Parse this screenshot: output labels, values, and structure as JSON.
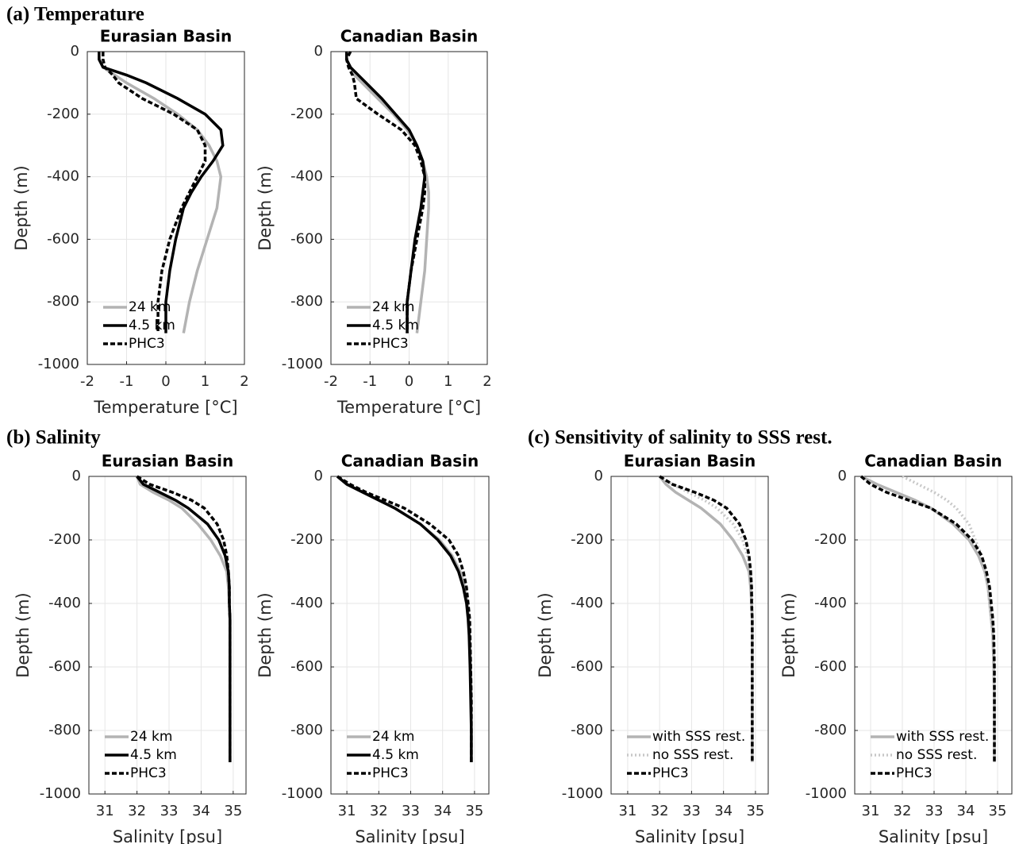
{
  "section_titles": [
    "(a) Temperature",
    "(b) Salinity",
    "(c) Sensitivity of salinity to SSS rest."
  ],
  "chart_data": [
    {
      "type": "line",
      "title": "Eurasian Basin",
      "xlabel": "Temperature [°C]",
      "ylabel": "Depth (m)",
      "y": [
        0,
        -25,
        -50,
        -75,
        -100,
        -150,
        -200,
        -250,
        -300,
        -350,
        -400,
        -450,
        -500,
        -600,
        -700,
        -800,
        -900
      ],
      "xlim": [
        -2,
        2
      ],
      "xticks": [
        -2,
        -1,
        0,
        1,
        2
      ],
      "ylim": [
        -1000,
        0
      ],
      "yticks": [
        0,
        -200,
        -400,
        -600,
        -800,
        -1000
      ],
      "grid": true,
      "legend": "lower left",
      "series": [
        {
          "name": "24 km",
          "color": "#b3b3b3",
          "style": "solid",
          "values": [
            -1.7,
            -1.7,
            -1.6,
            -1.3,
            -1.0,
            -0.3,
            0.3,
            0.8,
            1.1,
            1.3,
            1.4,
            1.35,
            1.3,
            1.05,
            0.8,
            0.6,
            0.45
          ]
        },
        {
          "name": "4.5 km",
          "color": "#000000",
          "style": "solid",
          "values": [
            -1.7,
            -1.7,
            -1.6,
            -1.0,
            -0.5,
            0.3,
            1.0,
            1.4,
            1.45,
            1.2,
            0.9,
            0.65,
            0.45,
            0.25,
            0.1,
            0.0,
            0.0
          ]
        },
        {
          "name": "PHC3",
          "color": "#000000",
          "style": "dashed",
          "values": [
            -1.6,
            -1.6,
            -1.55,
            -1.35,
            -1.2,
            -0.6,
            0.2,
            0.8,
            1.0,
            1.0,
            0.8,
            0.6,
            0.4,
            0.1,
            -0.1,
            -0.2,
            -0.2
          ]
        }
      ]
    },
    {
      "type": "line",
      "title": "Canadian Basin",
      "xlabel": "Temperature [°C]",
      "ylabel": "Depth (m)",
      "y": [
        0,
        -25,
        -50,
        -75,
        -100,
        -150,
        -200,
        -250,
        -300,
        -350,
        -400,
        -450,
        -500,
        -600,
        -700,
        -800,
        -900
      ],
      "xlim": [
        -2,
        2
      ],
      "xticks": [
        -2,
        -1,
        0,
        1,
        2
      ],
      "ylim": [
        -1000,
        0
      ],
      "yticks": [
        0,
        -200,
        -400,
        -600,
        -800,
        -1000
      ],
      "grid": true,
      "legend": "lower left",
      "series": [
        {
          "name": "24 km",
          "color": "#b3b3b3",
          "style": "solid",
          "values": [
            -1.6,
            -1.6,
            -1.5,
            -1.4,
            -1.2,
            -0.8,
            -0.4,
            -0.05,
            0.2,
            0.35,
            0.45,
            0.5,
            0.5,
            0.45,
            0.4,
            0.3,
            0.2
          ]
        },
        {
          "name": "4.5 km",
          "color": "#000000",
          "style": "solid",
          "values": [
            -1.6,
            -1.6,
            -1.5,
            -1.3,
            -1.1,
            -0.7,
            -0.35,
            0.0,
            0.2,
            0.35,
            0.4,
            0.35,
            0.3,
            0.15,
            0.05,
            -0.05,
            -0.05
          ]
        },
        {
          "name": "PHC3",
          "color": "#000000",
          "style": "dashed",
          "values": [
            -1.5,
            -1.6,
            -1.55,
            -1.45,
            -1.4,
            -1.35,
            -0.8,
            -0.2,
            0.15,
            0.3,
            0.4,
            0.4,
            0.35,
            0.2,
            0.05,
            -0.05,
            -0.05
          ]
        }
      ]
    },
    {
      "type": "line",
      "title": "Eurasian Basin",
      "xlabel": "Salinity [psu]",
      "ylabel": "Depth (m)",
      "y": [
        0,
        -25,
        -50,
        -75,
        -100,
        -150,
        -200,
        -250,
        -300,
        -350,
        -400,
        -450,
        -500,
        -600,
        -700,
        -800,
        -900
      ],
      "xlim": [
        30.5,
        35.4
      ],
      "xticks": [
        31,
        32,
        33,
        34,
        35
      ],
      "ylim": [
        -1000,
        0
      ],
      "yticks": [
        0,
        -200,
        -400,
        -600,
        -800,
        -1000
      ],
      "grid": true,
      "legend": "lower left",
      "series": [
        {
          "name": "24 km",
          "color": "#b3b3b3",
          "style": "solid",
          "values": [
            32.0,
            32.1,
            32.5,
            33.0,
            33.4,
            33.9,
            34.3,
            34.6,
            34.8,
            34.85,
            34.88,
            34.9,
            34.9,
            34.9,
            34.9,
            34.9,
            34.9
          ]
        },
        {
          "name": "4.5 km",
          "color": "#000000",
          "style": "solid",
          "values": [
            32.0,
            32.2,
            32.7,
            33.2,
            33.6,
            34.2,
            34.55,
            34.75,
            34.85,
            34.88,
            34.88,
            34.9,
            34.9,
            34.9,
            34.9,
            34.9,
            34.9
          ]
        },
        {
          "name": "PHC3",
          "color": "#000000",
          "style": "dashed",
          "values": [
            32.0,
            32.4,
            33.1,
            33.7,
            34.1,
            34.5,
            34.7,
            34.8,
            34.85,
            34.88,
            34.88,
            34.9,
            34.9,
            34.9,
            34.9,
            34.9,
            34.9
          ]
        }
      ]
    },
    {
      "type": "line",
      "title": "Canadian Basin",
      "xlabel": "Salinity [psu]",
      "ylabel": "Depth (m)",
      "y": [
        0,
        -25,
        -50,
        -75,
        -100,
        -150,
        -200,
        -250,
        -300,
        -350,
        -400,
        -450,
        -500,
        -600,
        -700,
        -800,
        -900
      ],
      "xlim": [
        30.5,
        35.45
      ],
      "xticks": [
        31,
        32,
        33,
        34,
        35
      ],
      "ylim": [
        -1000,
        0
      ],
      "yticks": [
        0,
        -200,
        -400,
        -600,
        -800,
        -1000
      ],
      "grid": true,
      "legend": "lower left",
      "series": [
        {
          "name": "24 km",
          "color": "#b3b3b3",
          "style": "solid",
          "values": [
            30.7,
            31.0,
            31.5,
            32.0,
            32.5,
            33.3,
            33.9,
            34.3,
            34.55,
            34.7,
            34.78,
            34.82,
            34.85,
            34.88,
            34.9,
            34.9,
            34.9
          ]
        },
        {
          "name": "4.5 km",
          "color": "#000000",
          "style": "solid",
          "values": [
            30.7,
            31.0,
            31.5,
            32.0,
            32.5,
            33.3,
            33.85,
            34.25,
            34.5,
            34.65,
            34.75,
            34.8,
            34.83,
            34.86,
            34.88,
            34.9,
            34.9
          ]
        },
        {
          "name": "PHC3",
          "color": "#000000",
          "style": "dashed",
          "values": [
            30.7,
            31.1,
            31.6,
            32.2,
            32.8,
            33.6,
            34.2,
            34.5,
            34.65,
            34.75,
            34.8,
            34.85,
            34.86,
            34.88,
            34.9,
            34.9,
            34.9
          ]
        }
      ]
    },
    {
      "type": "line",
      "title": "Eurasian Basin",
      "xlabel": "Salinity [psu]",
      "ylabel": "Depth (m)",
      "y": [
        0,
        -25,
        -50,
        -75,
        -100,
        -150,
        -200,
        -250,
        -300,
        -350,
        -400,
        -450,
        -500,
        -600,
        -700,
        -800,
        -900
      ],
      "xlim": [
        30.48,
        35.4
      ],
      "xticks": [
        31,
        32,
        33,
        34,
        35
      ],
      "ylim": [
        -1000,
        0
      ],
      "yticks": [
        0,
        -200,
        -400,
        -600,
        -800,
        -1000
      ],
      "grid": true,
      "legend": "lower left",
      "series": [
        {
          "name": "with SSS rest.",
          "color": "#b3b3b3",
          "style": "solid",
          "values": [
            32.0,
            32.2,
            32.5,
            32.9,
            33.3,
            33.9,
            34.3,
            34.6,
            34.8,
            34.85,
            34.88,
            34.9,
            34.9,
            34.9,
            34.9,
            34.9,
            34.9
          ]
        },
        {
          "name": "no SSS rest.",
          "color": "#c8c8c8",
          "style": "dotted",
          "values": [
            32.0,
            32.4,
            32.9,
            33.4,
            33.8,
            34.3,
            34.6,
            34.75,
            34.85,
            34.88,
            34.9,
            34.9,
            34.9,
            34.9,
            34.9,
            34.9,
            34.9
          ]
        },
        {
          "name": "PHC3",
          "color": "#000000",
          "style": "dashed",
          "values": [
            32.0,
            32.4,
            33.1,
            33.7,
            34.1,
            34.5,
            34.7,
            34.8,
            34.85,
            34.88,
            34.88,
            34.9,
            34.9,
            34.9,
            34.9,
            34.9,
            34.9
          ]
        }
      ]
    },
    {
      "type": "line",
      "title": "Canadian Basin",
      "xlabel": "Salinity [psu]",
      "ylabel": "Depth (m)",
      "y": [
        0,
        -25,
        -50,
        -75,
        -100,
        -150,
        -200,
        -250,
        -300,
        -350,
        -400,
        -450,
        -500,
        -600,
        -700,
        -800,
        -900
      ],
      "xlim": [
        30.5,
        35.45
      ],
      "xticks": [
        31,
        32,
        33,
        34,
        35
      ],
      "ylim": [
        -1000,
        0
      ],
      "yticks": [
        0,
        -200,
        -400,
        -600,
        -800,
        -1000
      ],
      "grid": true,
      "legend": "lower left",
      "series": [
        {
          "name": "with SSS rest.",
          "color": "#b3b3b3",
          "style": "solid",
          "values": [
            30.7,
            31.2,
            31.8,
            32.4,
            32.9,
            33.6,
            34.1,
            34.4,
            34.6,
            34.7,
            34.75,
            34.8,
            34.85,
            34.88,
            34.9,
            34.9,
            34.9
          ]
        },
        {
          "name": "no SSS rest.",
          "color": "#c8c8c8",
          "style": "dotted",
          "values": [
            32.0,
            32.5,
            33.0,
            33.4,
            33.7,
            34.1,
            34.3,
            34.5,
            34.6,
            34.7,
            34.75,
            34.8,
            34.85,
            34.88,
            34.9,
            34.9,
            34.9
          ]
        },
        {
          "name": "PHC3",
          "color": "#000000",
          "style": "dashed",
          "values": [
            30.7,
            31.0,
            31.5,
            32.2,
            32.9,
            33.7,
            34.2,
            34.5,
            34.65,
            34.75,
            34.8,
            34.85,
            34.88,
            34.9,
            34.9,
            34.9,
            34.9
          ]
        }
      ]
    }
  ]
}
